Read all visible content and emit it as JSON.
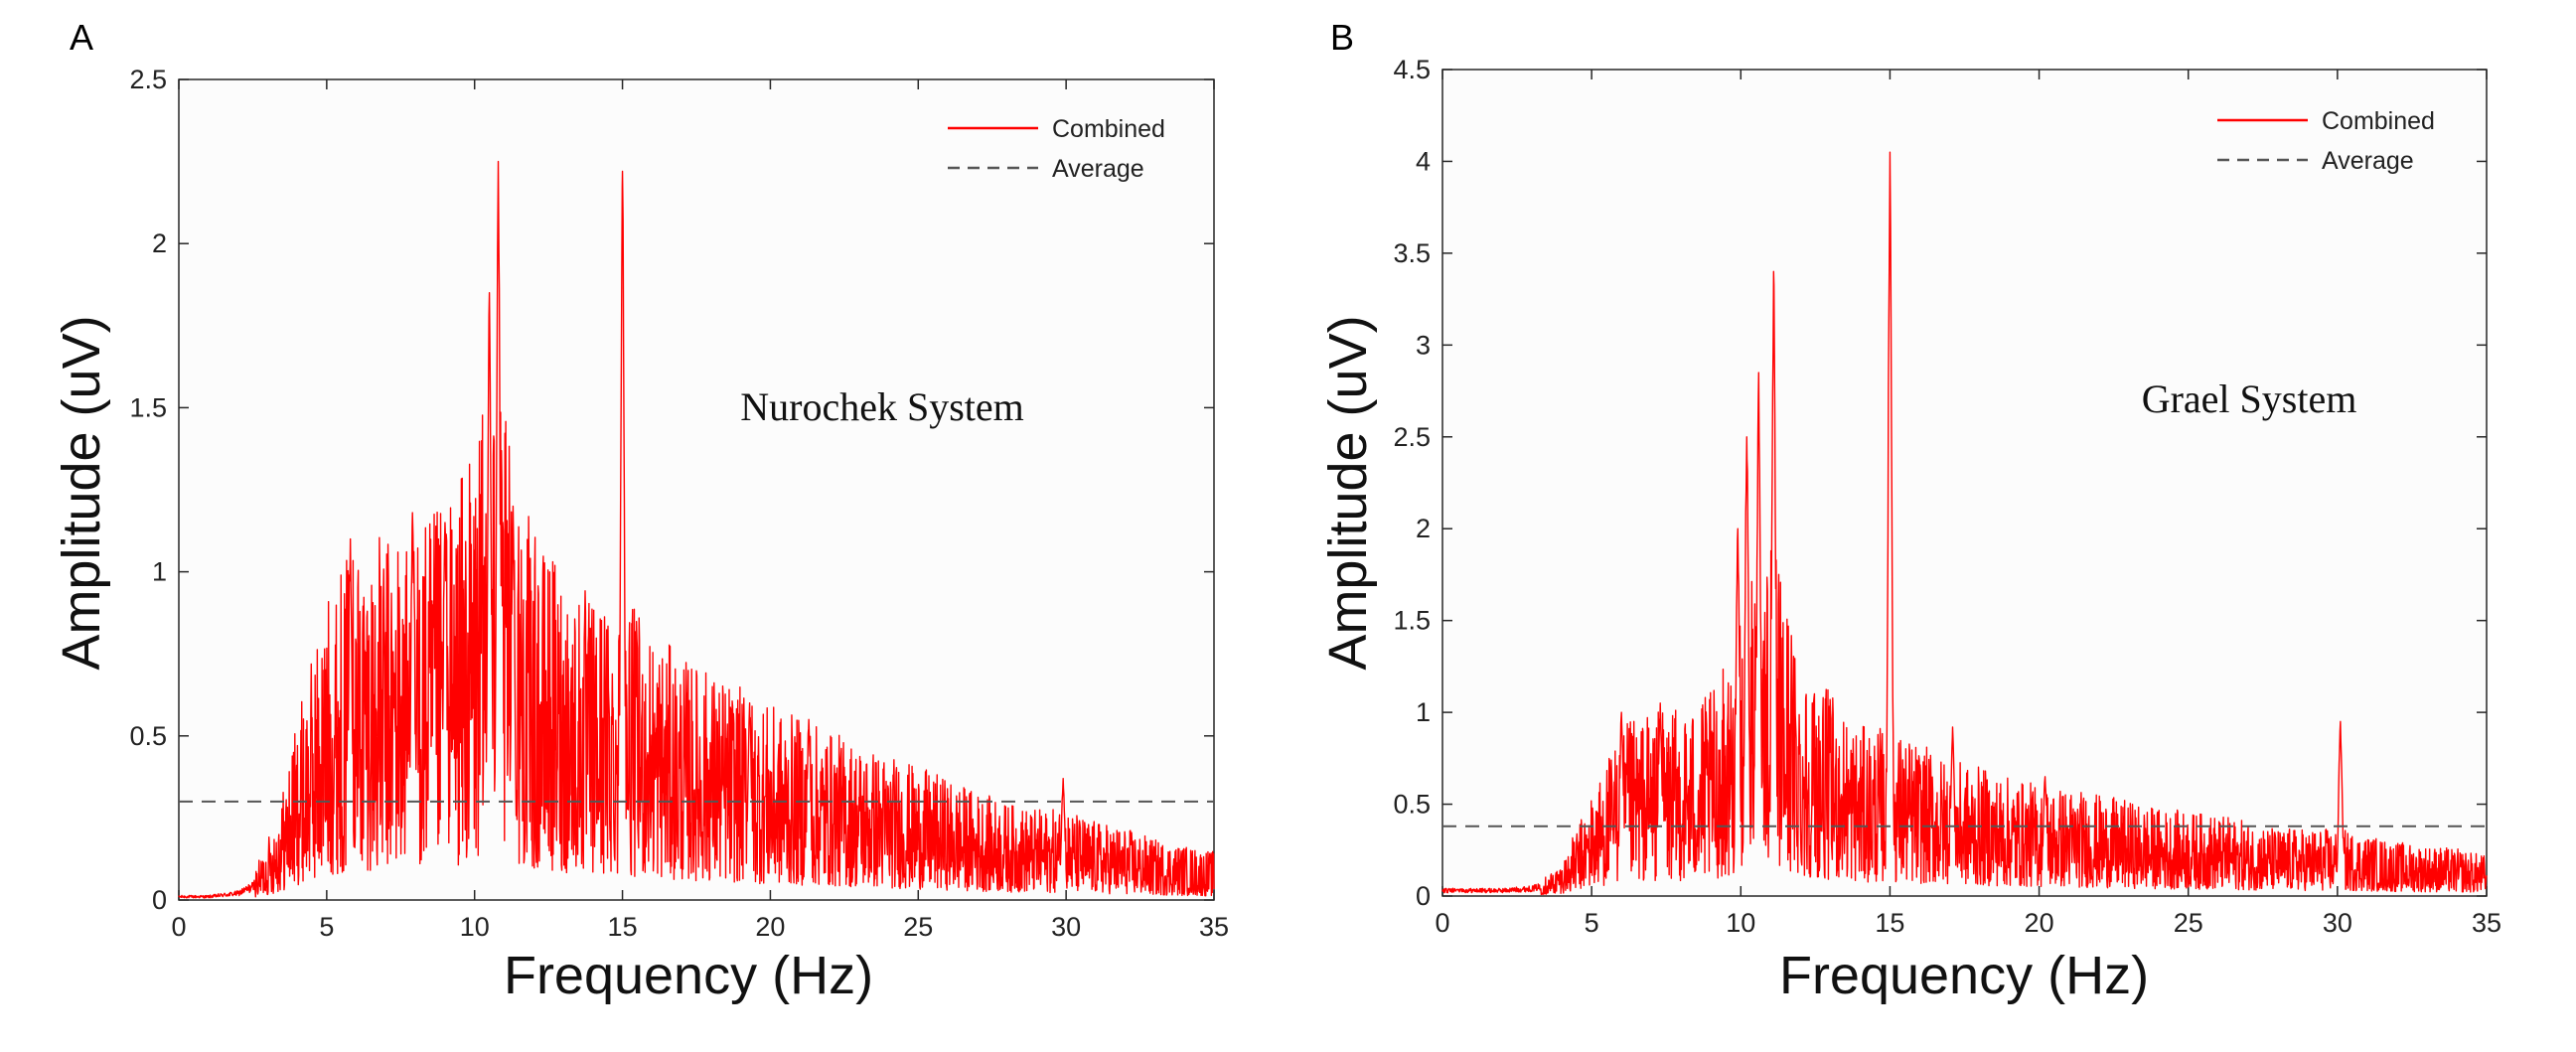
{
  "chart_data": [
    {
      "type": "line",
      "panel_label": "A",
      "title": "",
      "annotation": "Nurochek System",
      "xlabel": "Frequency (Hz)",
      "ylabel": "Amplitude (uV)",
      "xlim": [
        0,
        35
      ],
      "ylim": [
        0,
        2.5
      ],
      "xticks": [
        0,
        5,
        10,
        15,
        20,
        25,
        30,
        35
      ],
      "xtick_labels": [
        "0",
        "5",
        "10",
        "15",
        "20",
        "25",
        "30",
        "35"
      ],
      "yticks": [
        0,
        0.5,
        1,
        1.5,
        2,
        2.5
      ],
      "ytick_labels": [
        "0",
        "0.5",
        "1",
        "1.5",
        "2",
        "2.5"
      ],
      "legend_position": "top-right",
      "series": [
        {
          "name": "Combined",
          "color": "#ff0000",
          "style": "solid",
          "envelope": {
            "x": [
              0,
              1,
              2,
              2.5,
              3,
              3.5,
              4,
              4.5,
              5,
              5.5,
              6,
              7,
              8,
              9,
              10,
              10.5,
              11,
              12,
              13,
              14,
              15,
              16,
              17,
              18,
              19,
              20,
              21,
              22,
              23,
              24,
              25,
              26,
              27,
              28,
              29,
              30,
              31,
              32,
              33,
              34,
              35
            ],
            "y": [
              0.01,
              0.01,
              0.02,
              0.04,
              0.1,
              0.18,
              0.3,
              0.4,
              0.5,
              0.55,
              0.6,
              0.6,
              0.62,
              0.65,
              0.75,
              0.85,
              0.8,
              0.6,
              0.55,
              0.5,
              0.5,
              0.45,
              0.4,
              0.38,
              0.35,
              0.32,
              0.3,
              0.28,
              0.26,
              0.24,
              0.22,
              0.2,
              0.18,
              0.16,
              0.15,
              0.15,
              0.13,
              0.12,
              0.1,
              0.09,
              0.08
            ]
          },
          "peaks": [
            {
              "x": 5.8,
              "y": 1.1
            },
            {
              "x": 7.9,
              "y": 1.18
            },
            {
              "x": 9.0,
              "y": 1.15
            },
            {
              "x": 10.5,
              "y": 1.85
            },
            {
              "x": 10.8,
              "y": 2.25
            },
            {
              "x": 11.3,
              "y": 1.2
            },
            {
              "x": 15.0,
              "y": 2.22
            },
            {
              "x": 19.3,
              "y": 0.6
            },
            {
              "x": 21.3,
              "y": 0.55
            },
            {
              "x": 29.9,
              "y": 0.37
            }
          ]
        },
        {
          "name": "Average",
          "color": "#555555",
          "style": "dashed",
          "x": [
            0,
            35
          ],
          "y": [
            0.3,
            0.3
          ]
        }
      ]
    },
    {
      "type": "line",
      "panel_label": "B",
      "title": "",
      "annotation": "Grael System",
      "xlabel": "Frequency (Hz)",
      "ylabel": "Amplitude (uV)",
      "xlim": [
        0,
        35
      ],
      "ylim": [
        0,
        4.5
      ],
      "xticks": [
        0,
        5,
        10,
        15,
        20,
        25,
        30,
        35
      ],
      "xtick_labels": [
        "0",
        "5",
        "10",
        "15",
        "20",
        "25",
        "30",
        "35"
      ],
      "yticks": [
        0,
        0.5,
        1,
        1.5,
        2,
        2.5,
        3,
        3.5,
        4,
        4.5
      ],
      "ytick_labels": [
        "0",
        "0.5",
        "1",
        "1.5",
        "2",
        "2.5",
        "3",
        "3.5",
        "4",
        "4.5"
      ],
      "legend_position": "top-right",
      "series": [
        {
          "name": "Combined",
          "color": "#ff0000",
          "style": "solid",
          "envelope": {
            "x": [
              0,
              2,
              3,
              3.5,
              4,
              4.5,
              5,
              6,
              7,
              8,
              9,
              10,
              10.5,
              11,
              11.5,
              12,
              13,
              14,
              15,
              16,
              17,
              18,
              19,
              20,
              21,
              22,
              23,
              24,
              25,
              26,
              27,
              28,
              29,
              30,
              31,
              32,
              33,
              34,
              35
            ],
            "y": [
              0.03,
              0.03,
              0.04,
              0.06,
              0.1,
              0.2,
              0.3,
              0.5,
              0.55,
              0.55,
              0.6,
              0.8,
              1.0,
              1.1,
              0.9,
              0.7,
              0.6,
              0.5,
              0.5,
              0.45,
              0.4,
              0.38,
              0.35,
              0.33,
              0.32,
              0.3,
              0.28,
              0.26,
              0.25,
              0.24,
              0.22,
              0.2,
              0.2,
              0.2,
              0.18,
              0.16,
              0.15,
              0.14,
              0.12
            ]
          },
          "peaks": [
            {
              "x": 6.0,
              "y": 1.0
            },
            {
              "x": 7.3,
              "y": 1.05
            },
            {
              "x": 9.9,
              "y": 2.0
            },
            {
              "x": 10.2,
              "y": 2.5
            },
            {
              "x": 10.6,
              "y": 2.85
            },
            {
              "x": 11.1,
              "y": 3.4
            },
            {
              "x": 15.0,
              "y": 4.05
            },
            {
              "x": 17.1,
              "y": 0.92
            },
            {
              "x": 20.2,
              "y": 0.65
            },
            {
              "x": 30.1,
              "y": 0.95
            }
          ]
        },
        {
          "name": "Average",
          "color": "#555555",
          "style": "dashed",
          "x": [
            0,
            35
          ],
          "y": [
            0.38,
            0.38
          ]
        }
      ]
    }
  ]
}
